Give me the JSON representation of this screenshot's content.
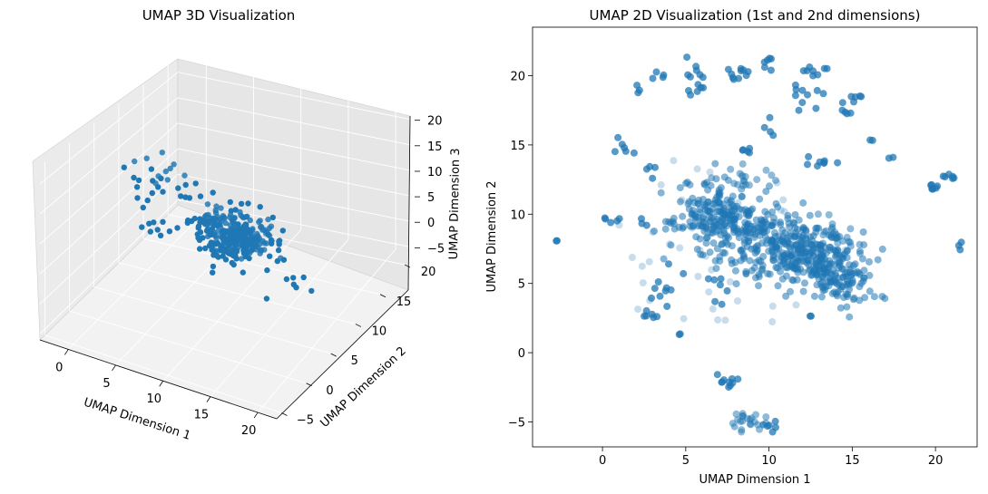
{
  "figure": {
    "left_title": "UMAP 3D Visualization",
    "right_title": "UMAP 2D Visualization (1st and 2nd dimensions)"
  },
  "chart_data": [
    {
      "type": "scatter",
      "title": "UMAP 3D Visualization",
      "xlabel": "UMAP Dimension 1",
      "ylabel": "UMAP Dimension 2",
      "zlabel": "UMAP Dimension 3",
      "x_ticks": [
        "0",
        "5",
        "10",
        "15",
        "20"
      ],
      "y_ticks": [
        "−5",
        "0",
        "5",
        "10",
        "15",
        "20"
      ],
      "z_ticks": [
        "−5",
        "0",
        "5",
        "10",
        "15",
        "20"
      ],
      "xlim": [
        -3,
        22
      ],
      "ylim": [
        -6,
        22
      ],
      "zlim": [
        -6,
        23
      ],
      "grid": true,
      "marker_color": "#1f77b4",
      "clusters": [
        {
          "x": 10,
          "y": 9,
          "z": 5,
          "spread": [
            1.5,
            1.5,
            1.2
          ],
          "n": 260
        },
        {
          "x": 7,
          "y": 8,
          "z": 8,
          "spread": [
            1.0,
            1.0,
            1.0
          ],
          "n": 40
        },
        {
          "x": 4,
          "y": 3,
          "z": 17,
          "spread": [
            1.2,
            1.2,
            1.0
          ],
          "n": 12
        },
        {
          "x": 9,
          "y": 2,
          "z": 19,
          "spread": [
            1.0,
            1.0,
            0.8
          ],
          "n": 8
        },
        {
          "x": 13,
          "y": 4,
          "z": 16,
          "spread": [
            1.5,
            1.0,
            1.0
          ],
          "n": 14
        },
        {
          "x": 15,
          "y": 6,
          "z": 10,
          "spread": [
            1.0,
            1.0,
            1.0
          ],
          "n": 10
        },
        {
          "x": 18,
          "y": 5,
          "z": 6,
          "spread": [
            1.2,
            1.0,
            0.8
          ],
          "n": 10
        },
        {
          "x": 2,
          "y": 6,
          "z": 6,
          "spread": [
            1.0,
            1.0,
            1.0
          ],
          "n": 8
        },
        {
          "x": 6,
          "y": 14,
          "z": -1,
          "spread": [
            0.8,
            0.8,
            0.8
          ],
          "n": 14
        },
        {
          "x": 1,
          "y": 10,
          "z": 13,
          "spread": [
            1.5,
            1.5,
            1.0
          ],
          "n": 10
        }
      ]
    },
    {
      "type": "scatter",
      "title": "UMAP 2D Visualization (1st and 2nd dimensions)",
      "xlabel": "UMAP Dimension 1",
      "ylabel": "UMAP Dimension 2",
      "x_ticks": [
        0,
        5,
        10,
        15,
        20
      ],
      "y_ticks": [
        -5,
        0,
        5,
        10,
        15,
        20
      ],
      "xlim": [
        -4.2,
        22.5
      ],
      "ylim": [
        -6.8,
        23.5
      ],
      "grid": false,
      "marker_color": "#1f77b4",
      "main_cluster": {
        "from": [
          5.5,
          10.5
        ],
        "to": [
          15,
          5.2
        ],
        "width": 1.6,
        "n": 650
      },
      "clusters": [
        {
          "x": 7.9,
          "y": 20.1,
          "spread": [
            0.5,
            0.3
          ],
          "n": 10
        },
        {
          "x": 10.1,
          "y": 21.2,
          "spread": [
            0.3,
            0.6
          ],
          "n": 6
        },
        {
          "x": 12.8,
          "y": 20.4,
          "spread": [
            0.5,
            0.3
          ],
          "n": 8
        },
        {
          "x": 12.5,
          "y": 18.7,
          "spread": [
            0.6,
            0.4
          ],
          "n": 10
        },
        {
          "x": 5.5,
          "y": 20.2,
          "spread": [
            0.3,
            0.6
          ],
          "n": 8
        },
        {
          "x": 5.9,
          "y": 18.8,
          "spread": [
            0.4,
            0.3
          ],
          "n": 5
        },
        {
          "x": 3.2,
          "y": 19.9,
          "spread": [
            0.3,
            0.2
          ],
          "n": 4
        },
        {
          "x": 2.3,
          "y": 19.1,
          "spread": [
            0.2,
            0.2
          ],
          "n": 3
        },
        {
          "x": 1.3,
          "y": 14.9,
          "spread": [
            0.5,
            0.3
          ],
          "n": 6
        },
        {
          "x": 8.8,
          "y": 14.6,
          "spread": [
            0.4,
            0.2
          ],
          "n": 5
        },
        {
          "x": 13.2,
          "y": 13.7,
          "spread": [
            0.6,
            0.3
          ],
          "n": 8
        },
        {
          "x": 14.5,
          "y": 17.6,
          "spread": [
            0.4,
            0.4
          ],
          "n": 6
        },
        {
          "x": 15.4,
          "y": 18.5,
          "spread": [
            0.3,
            0.2
          ],
          "n": 4
        },
        {
          "x": 10.2,
          "y": 16.1,
          "spread": [
            0.2,
            0.4
          ],
          "n": 4
        },
        {
          "x": 3.3,
          "y": 13.1,
          "spread": [
            0.3,
            0.2
          ],
          "n": 4
        },
        {
          "x": 20.6,
          "y": 12.7,
          "spread": [
            0.4,
            0.2
          ],
          "n": 6
        },
        {
          "x": 19.5,
          "y": 11.7,
          "spread": [
            0.5,
            0.2
          ],
          "n": 7
        },
        {
          "x": 21.4,
          "y": 7.9,
          "spread": [
            0.1,
            0.2
          ],
          "n": 3
        },
        {
          "x": 14.0,
          "y": 8.0,
          "spread": [
            0.7,
            0.7
          ],
          "n": 30
        },
        {
          "x": 0.5,
          "y": 9.4,
          "spread": [
            0.4,
            0.2
          ],
          "n": 5
        },
        {
          "x": 2.3,
          "y": 9.3,
          "spread": [
            0.2,
            0.2
          ],
          "n": 3
        },
        {
          "x": -2.9,
          "y": 8.1,
          "spread": [
            0.1,
            0.1
          ],
          "n": 2
        },
        {
          "x": 7.4,
          "y": -2.1,
          "spread": [
            0.5,
            0.2
          ],
          "n": 10
        },
        {
          "x": 8.6,
          "y": -5.0,
          "spread": [
            0.6,
            0.3
          ],
          "n": 22
        },
        {
          "x": 9.9,
          "y": -5.2,
          "spread": [
            0.3,
            0.2
          ],
          "n": 6
        },
        {
          "x": 3.9,
          "y": 3.9,
          "spread": [
            0.7,
            1.2
          ],
          "n": 12
        },
        {
          "x": 2.5,
          "y": 2.8,
          "spread": [
            0.3,
            0.3
          ],
          "n": 4
        },
        {
          "x": 4.5,
          "y": 1.2,
          "spread": [
            0.1,
            0.2
          ],
          "n": 2
        },
        {
          "x": 7.5,
          "y": 5.0,
          "spread": [
            0.8,
            0.8
          ],
          "n": 8
        },
        {
          "x": 12.4,
          "y": 2.5,
          "spread": [
            0.2,
            0.2
          ],
          "n": 2
        },
        {
          "x": 16.2,
          "y": 15.3,
          "spread": [
            0.2,
            0.2
          ],
          "n": 2
        },
        {
          "x": 17.3,
          "y": 14.2,
          "spread": [
            0.2,
            0.2
          ],
          "n": 2
        },
        {
          "x": 8.5,
          "y": 12.5,
          "spread": [
            0.9,
            0.5
          ],
          "n": 20
        }
      ]
    }
  ]
}
